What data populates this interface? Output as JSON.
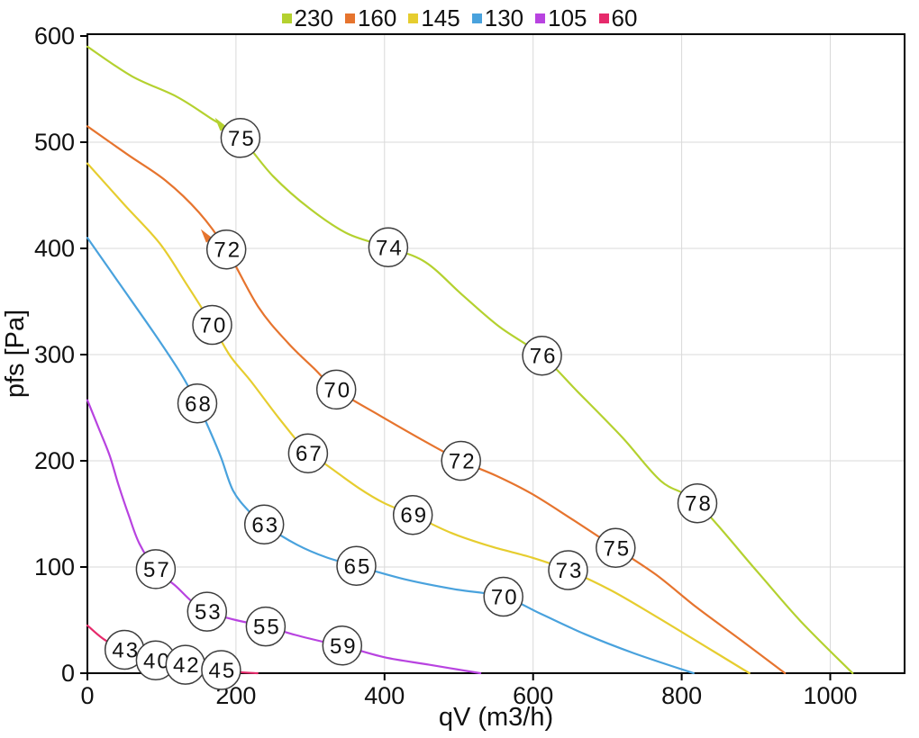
{
  "chart_data": {
    "type": "line",
    "title": "",
    "xlabel": "qV (m3/h)",
    "ylabel": "pfs [Pa]",
    "xlim": [
      0,
      1100
    ],
    "ylim": [
      0,
      600
    ],
    "xticks": [
      0,
      200,
      400,
      600,
      800,
      1000
    ],
    "yticks": [
      0,
      100,
      200,
      300,
      400,
      500,
      600
    ],
    "grid": true,
    "legend_position": "top-center",
    "series": [
      {
        "name": "230",
        "color": "#b4d12f",
        "points": [
          [
            0,
            590
          ],
          [
            60,
            562
          ],
          [
            120,
            543
          ],
          [
            165,
            523
          ],
          [
            206,
            504
          ],
          [
            250,
            468
          ],
          [
            300,
            437
          ],
          [
            350,
            414
          ],
          [
            405,
            401
          ],
          [
            455,
            387
          ],
          [
            505,
            356
          ],
          [
            555,
            326
          ],
          [
            612,
            299
          ],
          [
            660,
            265
          ],
          [
            720,
            222
          ],
          [
            772,
            181
          ],
          [
            821,
            160
          ],
          [
            900,
            97
          ],
          [
            960,
            49
          ],
          [
            1030,
            0
          ]
        ],
        "point_labels": [
          {
            "text": "75",
            "x": 206,
            "y": 504,
            "arrow": true
          },
          {
            "text": "74",
            "x": 405,
            "y": 401
          },
          {
            "text": "76",
            "x": 612,
            "y": 299
          },
          {
            "text": "78",
            "x": 821,
            "y": 160
          }
        ]
      },
      {
        "name": "160",
        "color": "#e6742e",
        "points": [
          [
            0,
            515
          ],
          [
            55,
            488
          ],
          [
            105,
            464
          ],
          [
            150,
            434
          ],
          [
            187,
            399
          ],
          [
            230,
            345
          ],
          [
            270,
            311
          ],
          [
            305,
            287
          ],
          [
            335,
            267
          ],
          [
            395,
            242
          ],
          [
            450,
            220
          ],
          [
            503,
            200
          ],
          [
            550,
            186
          ],
          [
            598,
            169
          ],
          [
            650,
            146
          ],
          [
            711,
            118
          ],
          [
            765,
            93
          ],
          [
            820,
            62
          ],
          [
            880,
            31
          ],
          [
            939,
            0
          ]
        ],
        "point_labels": [
          {
            "text": "72",
            "x": 187,
            "y": 399,
            "arrow": true
          },
          {
            "text": "70",
            "x": 335,
            "y": 267
          },
          {
            "text": "72",
            "x": 503,
            "y": 200
          },
          {
            "text": "75",
            "x": 711,
            "y": 118
          }
        ]
      },
      {
        "name": "145",
        "color": "#e6cd2f",
        "points": [
          [
            0,
            480
          ],
          [
            50,
            441
          ],
          [
            97,
            405
          ],
          [
            132,
            368
          ],
          [
            168,
            328
          ],
          [
            192,
            299
          ],
          [
            220,
            275
          ],
          [
            258,
            240
          ],
          [
            297,
            207
          ],
          [
            318,
            198
          ],
          [
            366,
            174
          ],
          [
            400,
            160
          ],
          [
            438,
            149
          ],
          [
            490,
            132
          ],
          [
            545,
            119
          ],
          [
            598,
            109
          ],
          [
            647,
            97
          ],
          [
            705,
            78
          ],
          [
            764,
            54
          ],
          [
            830,
            26
          ],
          [
            891,
            0
          ]
        ],
        "point_labels": [
          {
            "text": "70",
            "x": 168,
            "y": 328
          },
          {
            "text": "67",
            "x": 297,
            "y": 207
          },
          {
            "text": "69",
            "x": 438,
            "y": 149
          },
          {
            "text": "73",
            "x": 647,
            "y": 97
          }
        ]
      },
      {
        "name": "130",
        "color": "#49a2dd",
        "points": [
          [
            0,
            410
          ],
          [
            45,
            365
          ],
          [
            90,
            320
          ],
          [
            125,
            283
          ],
          [
            148,
            254
          ],
          [
            165,
            228
          ],
          [
            180,
            203
          ],
          [
            196,
            172
          ],
          [
            218,
            152
          ],
          [
            238,
            140
          ],
          [
            282,
            121
          ],
          [
            322,
            109
          ],
          [
            362,
            101
          ],
          [
            430,
            88
          ],
          [
            495,
            79
          ],
          [
            560,
            72
          ],
          [
            610,
            56
          ],
          [
            669,
            37
          ],
          [
            735,
            19
          ],
          [
            816,
            0
          ]
        ],
        "point_labels": [
          {
            "text": "68",
            "x": 148,
            "y": 254
          },
          {
            "text": "63",
            "x": 238,
            "y": 140
          },
          {
            "text": "65",
            "x": 362,
            "y": 101
          },
          {
            "text": "70",
            "x": 560,
            "y": 72
          }
        ]
      },
      {
        "name": "105",
        "color": "#b843e0",
        "points": [
          [
            0,
            257
          ],
          [
            15,
            231
          ],
          [
            30,
            205
          ],
          [
            42,
            177
          ],
          [
            56,
            148
          ],
          [
            70,
            122
          ],
          [
            92,
            98
          ],
          [
            119,
            82
          ],
          [
            140,
            68
          ],
          [
            161,
            58
          ],
          [
            200,
            50
          ],
          [
            240,
            44
          ],
          [
            280,
            36
          ],
          [
            321,
            29
          ],
          [
            343,
            26
          ],
          [
            400,
            15
          ],
          [
            460,
            8
          ],
          [
            529,
            0
          ]
        ],
        "point_labels": [
          {
            "text": "57",
            "x": 92,
            "y": 98
          },
          {
            "text": "53",
            "x": 161,
            "y": 58
          },
          {
            "text": "55",
            "x": 240,
            "y": 44
          },
          {
            "text": "59",
            "x": 343,
            "y": 26
          }
        ]
      },
      {
        "name": "60",
        "color": "#e62a6b",
        "points": [
          [
            0,
            45
          ],
          [
            22,
            32
          ],
          [
            48,
            22
          ],
          [
            70,
            16
          ],
          [
            92,
            12
          ],
          [
            112,
            9
          ],
          [
            132,
            8
          ],
          [
            152,
            5
          ],
          [
            182,
            3
          ],
          [
            205,
            1
          ],
          [
            229,
            0
          ]
        ],
        "point_labels": [
          {
            "text": "43",
            "x": 50,
            "y": 22
          },
          {
            "text": "40",
            "x": 92,
            "y": 12
          },
          {
            "text": "42",
            "x": 132,
            "y": 8
          },
          {
            "text": "45",
            "x": 180,
            "y": 3
          }
        ]
      }
    ]
  }
}
